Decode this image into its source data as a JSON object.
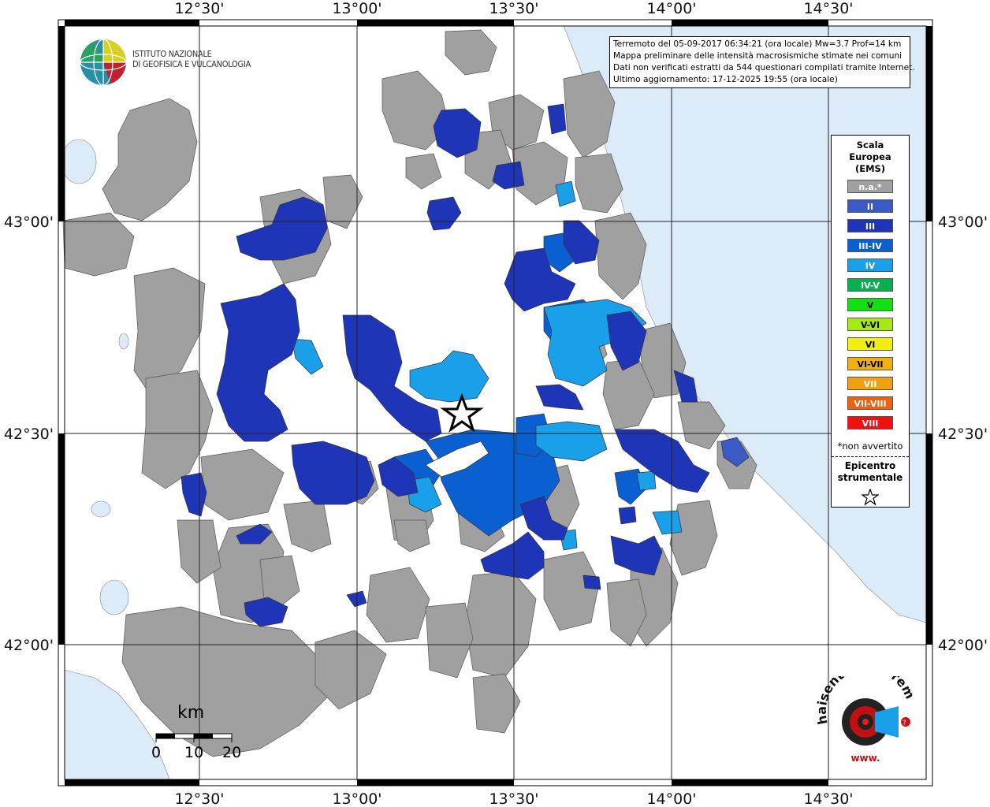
{
  "info": {
    "line1": "Terremoto del 05-09-2017 06:34:21 (ora locale) Mw=3.7 Prof=14 km",
    "line2": "Mappa preliminare delle intensità macrosismiche stimate nei comuni",
    "line3": "Dati non verificati estratti da 544 questionari compilati tramite Internet.",
    "line4": "Ultimo aggiornamento: 17-12-2025 19:55 (ora locale)"
  },
  "ingv": {
    "line1": "ISTITUTO NAZIONALE",
    "line2": "DI GEOFISICA E VULCANOLOGIA"
  },
  "axes": {
    "lon_labels": [
      "12°30'",
      "13°00'",
      "13°30'",
      "14°00'",
      "14°30'"
    ],
    "lat_labels": [
      "43°00'",
      "42°30'",
      "42°00'"
    ]
  },
  "legend": {
    "title_1": "Scala",
    "title_2": "Europea",
    "title_3": "(EMS)",
    "items": [
      {
        "label": "n.a.*",
        "color": "#a0a0a0"
      },
      {
        "label": "II",
        "color": "#3a5bc4"
      },
      {
        "label": "III",
        "color": "#1e35b8"
      },
      {
        "label": "III-IV",
        "color": "#0a60d0"
      },
      {
        "label": "IV",
        "color": "#1aa0e8"
      },
      {
        "label": "IV-V",
        "color": "#06b050"
      },
      {
        "label": "V",
        "color": "#12e012"
      },
      {
        "label": "V-VI",
        "color": "#a6e812"
      },
      {
        "label": "VI",
        "color": "#f0f010"
      },
      {
        "label": "VI-VII",
        "color": "#f0b010"
      },
      {
        "label": "VII",
        "color": "#f0a010"
      },
      {
        "label": "VII-VIII",
        "color": "#f06010"
      },
      {
        "label": "VIII",
        "color": "#f01010"
      }
    ],
    "note": "*non avvertito",
    "epicenter_1": "Epicentro",
    "epicenter_2": "strumentale"
  },
  "scale": {
    "unit": "km",
    "labels": [
      "0",
      "10",
      "20"
    ]
  },
  "colors": {
    "sea": "#dcebf8",
    "na": "#a0a0a0",
    "iii": "#1e35b8",
    "iii_iv": "#0a60d0",
    "iv": "#1aa0e8",
    "ii": "#3a5bc4"
  },
  "hsl": {
    "text": "haisentitoilterremoto.it",
    "prefix": "www."
  }
}
